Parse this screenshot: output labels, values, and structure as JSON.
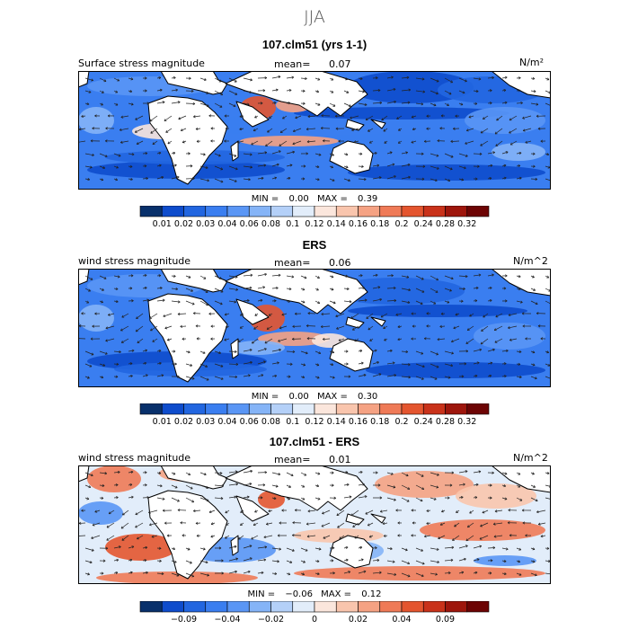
{
  "page": {
    "season": "JJA"
  },
  "panels": [
    {
      "title": "107.clm51 (yrs 1-1)",
      "field_label": "Surface stress magnitude",
      "mean_label": "mean=",
      "mean_value": "0.07",
      "units": "N/m²",
      "min_label": "MIN =",
      "min_value": "0.00",
      "max_label": "MAX =",
      "max_value": "0.39",
      "colorbar": {
        "colors": [
          "#08306b",
          "#0e4ccc",
          "#2266e0",
          "#3a7ef0",
          "#5a96f5",
          "#85b4f7",
          "#b4d0f8",
          "#e2edfa",
          "#fbe6dc",
          "#f9c5ad",
          "#f5a283",
          "#ef7a57",
          "#e4552f",
          "#c9321a",
          "#9e160c",
          "#6d0404"
        ],
        "labels": [
          "0.01",
          "0.02",
          "0.03",
          "0.04",
          "0.06",
          "0.08",
          "0.1",
          "0.12",
          "0.14",
          "0.16",
          "0.18",
          "0.2",
          "0.24",
          "0.28",
          "0.32"
        ]
      }
    },
    {
      "title": "ERS",
      "field_label": "wind stress magnitude",
      "mean_label": "mean=",
      "mean_value": "0.06",
      "units": "N/m^2",
      "min_label": "MIN =",
      "min_value": "0.00",
      "max_label": "MAX =",
      "max_value": "0.30",
      "colorbar": {
        "colors": [
          "#08306b",
          "#0e4ccc",
          "#2266e0",
          "#3a7ef0",
          "#5a96f5",
          "#85b4f7",
          "#b4d0f8",
          "#e2edfa",
          "#fbe6dc",
          "#f9c5ad",
          "#f5a283",
          "#ef7a57",
          "#e4552f",
          "#c9321a",
          "#9e160c",
          "#6d0404"
        ],
        "labels": [
          "0.01",
          "0.02",
          "0.03",
          "0.04",
          "0.06",
          "0.08",
          "0.1",
          "0.12",
          "0.14",
          "0.16",
          "0.18",
          "0.2",
          "0.24",
          "0.28",
          "0.32"
        ]
      }
    },
    {
      "title": "107.clm51 - ERS",
      "field_label": "wind stress magnitude",
      "mean_label": "mean=",
      "mean_value": "0.01",
      "units": "N/m^2",
      "min_label": "MIN =",
      "min_value": "−0.06",
      "max_label": "MAX =",
      "max_value": "0.12",
      "colorbar": {
        "colors": [
          "#08306b",
          "#0e4ccc",
          "#2266e0",
          "#3a7ef0",
          "#5a96f5",
          "#85b4f7",
          "#b4d0f8",
          "#e2edfa",
          "#fbe6dc",
          "#f9c5ad",
          "#f5a283",
          "#ef7a57",
          "#e4552f",
          "#c9321a",
          "#9e160c",
          "#6d0404"
        ],
        "labels": [
          "",
          "−0.09",
          "",
          "−0.04",
          "",
          "−0.02",
          "",
          "0",
          "",
          "0.02",
          "",
          "0.04",
          "",
          "0.09",
          ""
        ]
      }
    }
  ],
  "chart_data": {
    "type": "heatmap",
    "title": "JJA",
    "panels": [
      "107.clm51 (yrs 1-1)",
      "ERS",
      "107.clm51 - ERS"
    ],
    "means": [
      0.07,
      0.06,
      0.01
    ],
    "mins": [
      0.0,
      0.0,
      -0.06
    ],
    "maxs": [
      0.39,
      0.3,
      0.12
    ]
  }
}
